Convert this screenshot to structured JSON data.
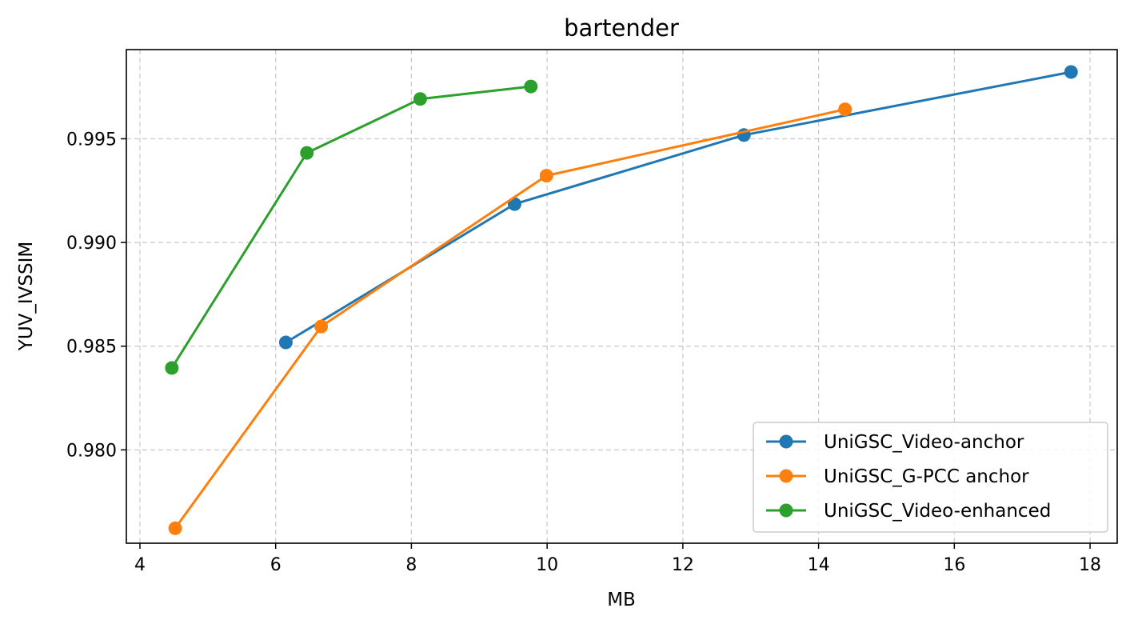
{
  "chart_data": {
    "type": "line",
    "title": "bartender",
    "xlabel": "MB",
    "ylabel": "YUV_IVSSIM",
    "xlim": [
      3.8,
      18.4
    ],
    "ylim": [
      0.9755,
      0.9993
    ],
    "xticks": [
      4,
      6,
      8,
      10,
      12,
      14,
      16,
      18
    ],
    "xtick_labels": [
      "4",
      "6",
      "8",
      "10",
      "12",
      "14",
      "16",
      "18"
    ],
    "yticks": [
      0.98,
      0.985,
      0.99,
      0.995
    ],
    "ytick_labels": [
      "0.980",
      "0.985",
      "0.990",
      "0.995"
    ],
    "grid": true,
    "legend_position": "bottom-right",
    "series": [
      {
        "name": "UniGSC_Video-anchor",
        "color": "#1f77b4",
        "x": [
          6.15,
          9.52,
          12.9,
          17.72
        ],
        "y": [
          0.98518,
          0.99185,
          0.99518,
          0.99822
        ]
      },
      {
        "name": "UniGSC_G-PCC anchor",
        "color": "#ff7f0e",
        "x": [
          4.52,
          6.67,
          9.99,
          14.39
        ],
        "y": [
          0.97622,
          0.98595,
          0.99322,
          0.99642
        ]
      },
      {
        "name": "UniGSC_Video-enhanced",
        "color": "#2ca02c",
        "x": [
          4.47,
          6.46,
          8.13,
          9.76
        ],
        "y": [
          0.98395,
          0.99432,
          0.99692,
          0.99752
        ]
      }
    ]
  }
}
